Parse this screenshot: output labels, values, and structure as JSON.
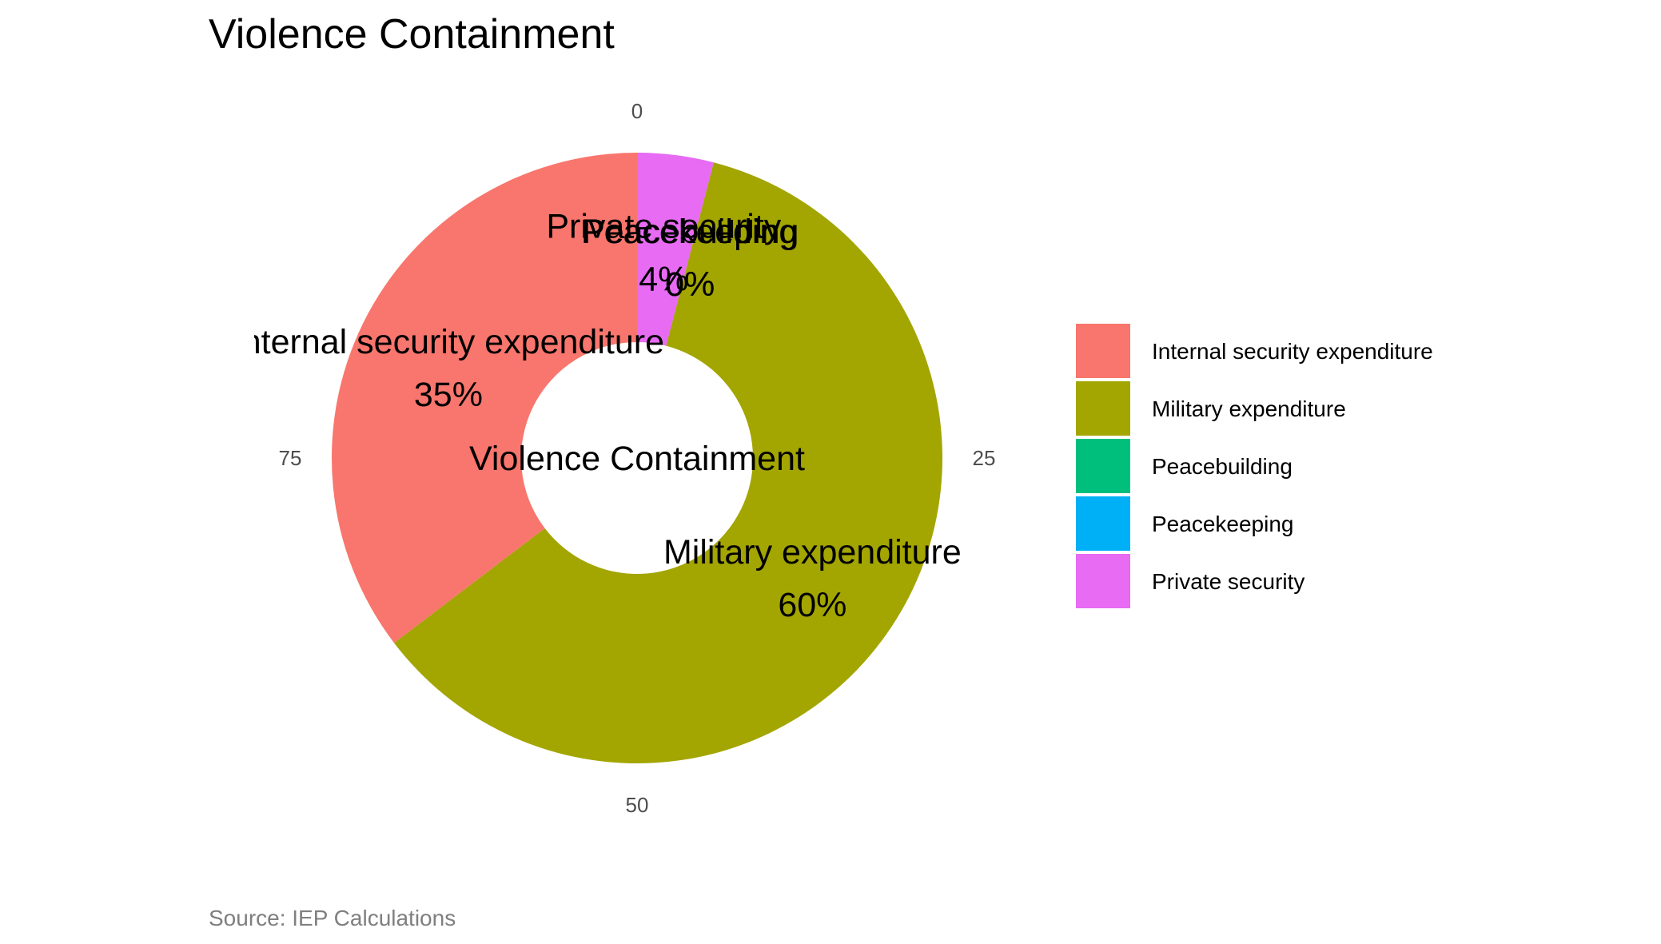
{
  "chart_data": {
    "type": "pie",
    "variant": "donut",
    "title": "Violence Containment",
    "center_label": "Violence Containment",
    "caption": "Source: IEP Calculations",
    "theta_ticks": [
      "0",
      "25",
      "50",
      "75"
    ],
    "theta_tick_values": [
      0,
      25,
      50,
      75
    ],
    "theta_range": [
      0,
      100
    ],
    "legend_position": "right",
    "grid": false,
    "slices": [
      {
        "name": "Internal security expenditure",
        "value": 35,
        "label": "35%",
        "color": "#F8766D"
      },
      {
        "name": "Military expenditure",
        "value": 60,
        "label": "60%",
        "color": "#A3A500"
      },
      {
        "name": "Peacebuilding",
        "value": 0,
        "label": "0%",
        "color": "#00BF7D"
      },
      {
        "name": "Peacekeeping",
        "value": 0,
        "label": "0%",
        "color": "#00B0F6"
      },
      {
        "name": "Private security",
        "value": 4,
        "label": "4%",
        "color": "#E76BF3"
      }
    ]
  }
}
